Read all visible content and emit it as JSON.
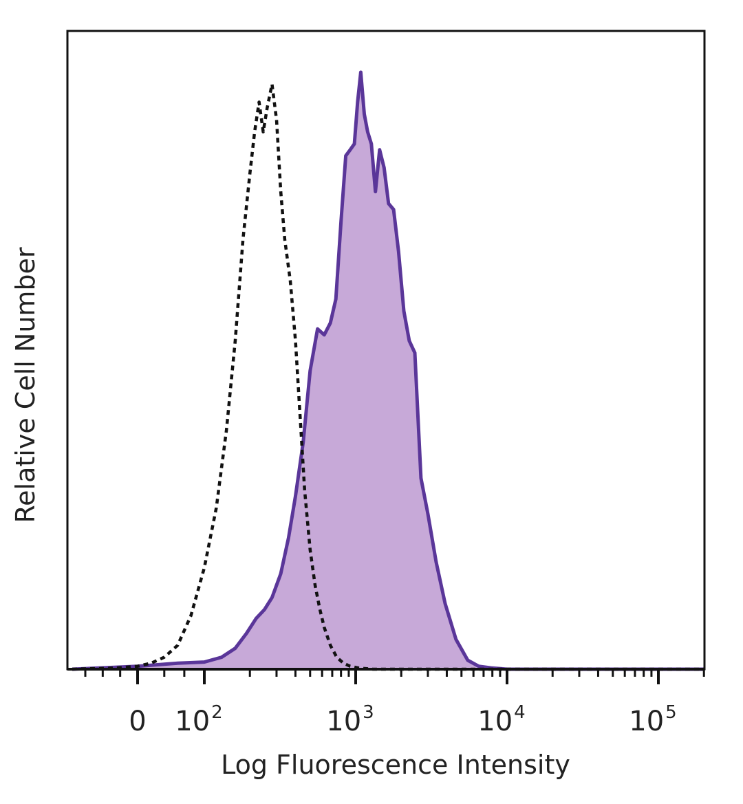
{
  "chart_data": {
    "type": "area",
    "title": "",
    "xlabel": "Log Fluorescence Intensity",
    "ylabel": "Relative Cell Number",
    "x_scale": "biexponential (linear near 0, log above 10^2)",
    "xlim": [
      -150,
      250000
    ],
    "ylim": [
      0,
      1
    ],
    "grid": false,
    "legend": "none",
    "colors": {
      "stained": "#5a3699",
      "stained_fill": "#c7a9d8",
      "control": "#111111",
      "axis": "#111111"
    },
    "x_ticks": [
      {
        "value": 0,
        "label": "0"
      },
      {
        "value": 100,
        "base": "10",
        "exp": "2"
      },
      {
        "value": 1000,
        "base": "10",
        "exp": "3"
      },
      {
        "value": 10000,
        "base": "10",
        "exp": "4"
      },
      {
        "value": 100000,
        "base": "10",
        "exp": "5"
      }
    ],
    "series": [
      {
        "style": "solid-filled",
        "x": [
          -150,
          0,
          60,
          100,
          130,
          160,
          190,
          220,
          250,
          280,
          320,
          360,
          400,
          450,
          500,
          560,
          620,
          680,
          740,
          800,
          860,
          920,
          980,
          1030,
          1080,
          1140,
          1200,
          1270,
          1350,
          1440,
          1540,
          1650,
          1780,
          1920,
          2080,
          2260,
          2460,
          2700,
          3000,
          3400,
          3900,
          4600,
          5500,
          6500,
          8000,
          10000,
          30000,
          100000,
          250000
        ],
        "y": [
          0,
          0.005,
          0.01,
          0.012,
          0.02,
          0.035,
          0.06,
          0.085,
          0.1,
          0.12,
          0.16,
          0.22,
          0.29,
          0.38,
          0.5,
          0.57,
          0.56,
          0.58,
          0.62,
          0.75,
          0.86,
          0.87,
          0.88,
          0.95,
          1.0,
          0.93,
          0.9,
          0.88,
          0.8,
          0.87,
          0.84,
          0.78,
          0.77,
          0.7,
          0.6,
          0.55,
          0.53,
          0.32,
          0.26,
          0.18,
          0.11,
          0.05,
          0.015,
          0.005,
          0.002,
          0,
          0,
          0,
          0
        ]
      },
      {
        "style": "dashed",
        "x": [
          -150,
          -50,
          0,
          20,
          40,
          60,
          80,
          100,
          120,
          140,
          160,
          180,
          200,
          215,
          230,
          245,
          260,
          280,
          300,
          320,
          340,
          370,
          400,
          430,
          460,
          500,
          540,
          580,
          620,
          680,
          750,
          830,
          920,
          1050,
          1300,
          2000,
          5000,
          100000,
          250000
        ],
        "y": [
          0,
          0.002,
          0.005,
          0.01,
          0.02,
          0.04,
          0.09,
          0.17,
          0.27,
          0.4,
          0.55,
          0.72,
          0.83,
          0.9,
          0.95,
          0.9,
          0.94,
          0.98,
          0.92,
          0.8,
          0.72,
          0.65,
          0.55,
          0.42,
          0.3,
          0.2,
          0.14,
          0.1,
          0.07,
          0.04,
          0.02,
          0.01,
          0.005,
          0.002,
          0,
          0,
          0,
          0,
          0
        ]
      }
    ]
  }
}
